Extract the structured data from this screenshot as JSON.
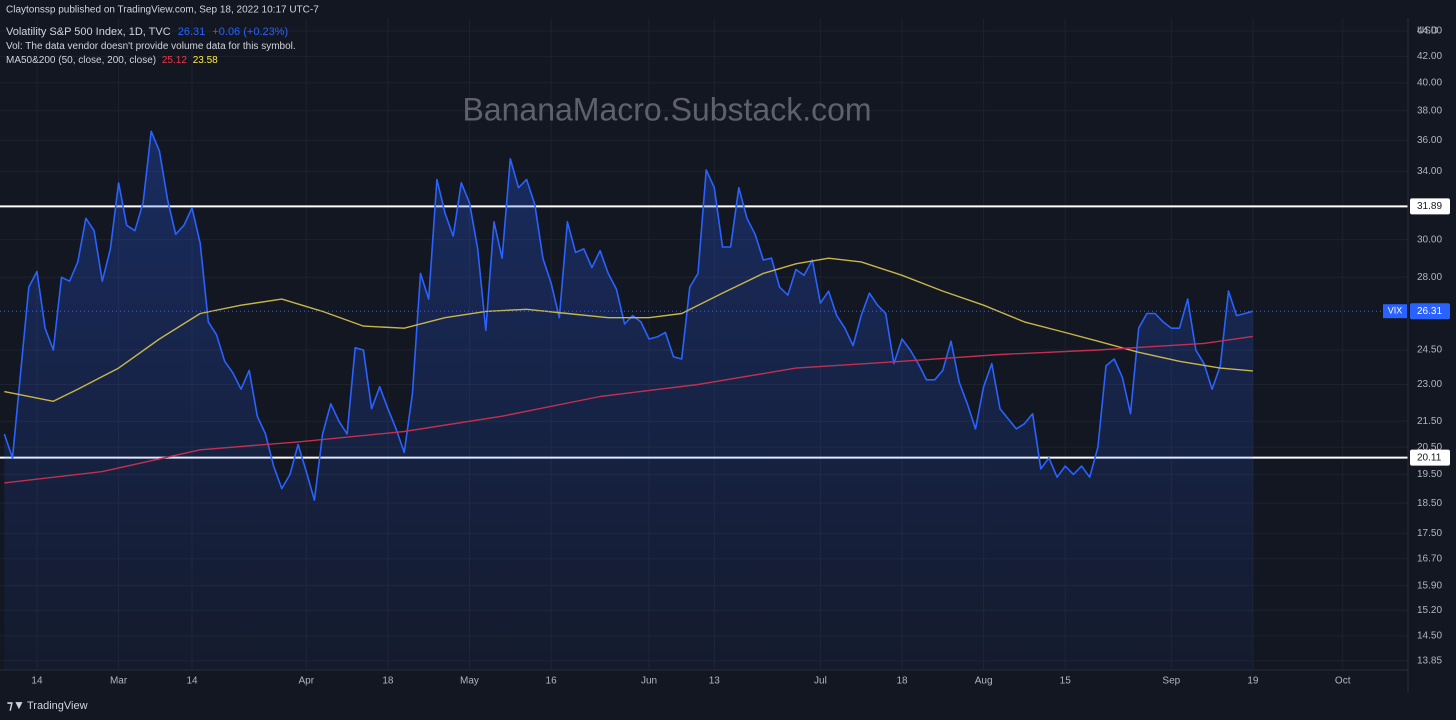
{
  "header": {
    "published": "Claytonssp published on TradingView.com, Sep 18, 2022 10:17 UTC-7",
    "symbol": "Volatility S&P 500 Index, 1D, TVC",
    "change": "+0.06 (+0.23%)",
    "volume_note": "Vol: The data vendor doesn't provide volume data for this symbol.",
    "indicator": "MA50&200 (50, close, 200, close)",
    "watermark": "BananaMacro.Substack.com",
    "currency": "USD",
    "brand": "TradingView"
  },
  "chart_data": {
    "type": "line",
    "log_scale": true,
    "grid": true,
    "xlim": [
      -3.55,
      168
    ],
    "xticks": [
      {
        "value": 0,
        "label": "14"
      },
      {
        "value": 10,
        "label": "Mar"
      },
      {
        "value": 19,
        "label": "14"
      },
      {
        "value": 33,
        "label": "Apr"
      },
      {
        "value": 43,
        "label": "18"
      },
      {
        "value": 53,
        "label": "May"
      },
      {
        "value": 63,
        "label": "16"
      },
      {
        "value": 75,
        "label": "Jun"
      },
      {
        "value": 83,
        "label": "13"
      },
      {
        "value": 96,
        "label": "Jul"
      },
      {
        "value": 106,
        "label": "18"
      },
      {
        "value": 116,
        "label": "Aug"
      },
      {
        "value": 126,
        "label": "15"
      },
      {
        "value": 139,
        "label": "Sep"
      },
      {
        "value": 149,
        "label": "19"
      },
      {
        "value": 160,
        "label": "Oct"
      }
    ],
    "ylim": [
      13.62,
      45.06
    ],
    "yticks": [
      {
        "value": 44,
        "label": "44.00"
      },
      {
        "value": 42,
        "label": "42.00"
      },
      {
        "value": 40,
        "label": "40.00"
      },
      {
        "value": 38,
        "label": "38.00"
      },
      {
        "value": 36,
        "label": "36.00"
      },
      {
        "value": 34,
        "label": "34.00"
      },
      {
        "value": 30,
        "label": "30.00"
      },
      {
        "value": 28,
        "label": "28.00"
      },
      {
        "value": 24.5,
        "label": "24.50"
      },
      {
        "value": 23,
        "label": "23.00"
      },
      {
        "value": 21.5,
        "label": "21.50"
      },
      {
        "value": 20.5,
        "label": "20.50"
      },
      {
        "value": 19.5,
        "label": "19.50"
      },
      {
        "value": 18.5,
        "label": "18.50"
      },
      {
        "value": 17.5,
        "label": "17.50"
      },
      {
        "value": 16.7,
        "label": "16.70"
      },
      {
        "value": 15.9,
        "label": "15.90"
      },
      {
        "value": 15.2,
        "label": "15.20"
      },
      {
        "value": 14.5,
        "label": "14.50"
      },
      {
        "value": 13.85,
        "label": "13.85"
      }
    ],
    "hlines": [
      {
        "value": 31.89,
        "color": "#ffffff"
      },
      {
        "value": 20.11,
        "color": "#ffffff"
      }
    ],
    "series": [
      {
        "name": "VIX",
        "color": "#2962ff",
        "area": true,
        "x": [
          -4,
          -3,
          -2,
          -1,
          0,
          1,
          2,
          3,
          4,
          5,
          6,
          7,
          8,
          9,
          10,
          11,
          12,
          13,
          14,
          15,
          16,
          17,
          18,
          19,
          20,
          21,
          22,
          23,
          24,
          25,
          26,
          27,
          28,
          29,
          30,
          31,
          32,
          33,
          34,
          35,
          36,
          37,
          38,
          39,
          40,
          41,
          42,
          43,
          44,
          45,
          46,
          47,
          48,
          49,
          50,
          51,
          52,
          53,
          54,
          55,
          56,
          57,
          58,
          59,
          60,
          61,
          62,
          63,
          64,
          65,
          66,
          67,
          68,
          69,
          70,
          71,
          72,
          73,
          74,
          75,
          76,
          77,
          78,
          79,
          80,
          81,
          82,
          83,
          84,
          85,
          86,
          87,
          88,
          89,
          90,
          91,
          92,
          93,
          94,
          95,
          96,
          97,
          98,
          99,
          100,
          101,
          102,
          103,
          104,
          105,
          106,
          107,
          108,
          109,
          110,
          111,
          112,
          113,
          114,
          115,
          116,
          117,
          118,
          119,
          120,
          121,
          122,
          123,
          124,
          125,
          126,
          127,
          128,
          129,
          130,
          131,
          132,
          133,
          134,
          135,
          136,
          137,
          138,
          139,
          140,
          141,
          142,
          143,
          144,
          145,
          146,
          147,
          148,
          149
        ],
        "values": [
          21,
          20.1,
          23.5,
          27.5,
          28.3,
          25.5,
          24.5,
          28,
          27.8,
          28.8,
          31.2,
          30.5,
          27.8,
          29.5,
          33.3,
          30.8,
          30.5,
          32.1,
          36.6,
          35.3,
          32.3,
          30.3,
          30.8,
          31.8,
          29.8,
          25.8,
          25.2,
          24,
          23.5,
          22.8,
          23.6,
          21.7,
          21,
          19.8,
          19,
          19.5,
          20.6,
          19.6,
          18.6,
          21,
          22.2,
          21.5,
          21,
          24.6,
          24.5,
          22,
          22.9,
          22,
          21.2,
          20.3,
          22.6,
          28.2,
          26.9,
          33.5,
          31.5,
          30.2,
          33.3,
          32.1,
          29.5,
          25.4,
          31,
          29,
          34.8,
          33,
          33.5,
          32,
          29,
          27.7,
          26,
          31,
          29.3,
          29.5,
          28.5,
          29.4,
          28.2,
          27.4,
          25.7,
          26.1,
          25.8,
          25,
          25.1,
          25.3,
          24.2,
          24.1,
          27.5,
          28.2,
          34.1,
          33,
          29.6,
          29.6,
          33,
          31.2,
          30.3,
          28.9,
          29,
          27.5,
          27.1,
          28.4,
          28.1,
          28.9,
          26.7,
          27.3,
          26.1,
          25.5,
          24.7,
          26.1,
          27.2,
          26.6,
          26.2,
          23.9,
          25,
          24.5,
          23.9,
          23.2,
          23.2,
          23.6,
          24.9,
          23.1,
          22.2,
          21.2,
          22.9,
          23.9,
          22,
          21.6,
          21.2,
          21.4,
          21.8,
          19.7,
          20.1,
          19.4,
          19.8,
          19.5,
          19.8,
          19.4,
          20.5,
          23.8,
          24.1,
          23.3,
          21.8,
          25.5,
          26.2,
          26.2,
          25.8,
          25.5,
          25.5,
          26.9,
          24.5,
          23.9,
          22.8,
          23.8,
          27.3,
          26.1,
          26.2,
          26.31
        ]
      },
      {
        "color": "#c8b54a",
        "x": [
          -4,
          2,
          5,
          10,
          15,
          20,
          25,
          30,
          35,
          40,
          45,
          50,
          55,
          60,
          65,
          70,
          75,
          79,
          84,
          89,
          93,
          97,
          101,
          106,
          111,
          116,
          121,
          126,
          130,
          135,
          140,
          145,
          149
        ],
        "values": [
          22.7,
          22.3,
          22.8,
          23.7,
          25,
          26.2,
          26.6,
          26.9,
          26.3,
          25.6,
          25.5,
          26,
          26.3,
          26.4,
          26.2,
          26,
          26,
          26.2,
          27.2,
          28.2,
          28.7,
          29,
          28.8,
          28.1,
          27.3,
          26.6,
          25.8,
          25.3,
          24.9,
          24.4,
          24,
          23.7,
          23.58
        ]
      },
      {
        "color": "#c2304f",
        "x": [
          -4,
          8,
          20,
          32,
          45,
          57,
          69,
          81,
          93,
          106,
          118,
          130,
          143,
          149
        ],
        "values": [
          19.2,
          19.6,
          20.4,
          20.7,
          21.1,
          21.7,
          22.5,
          23,
          23.7,
          24,
          24.3,
          24.5,
          24.8,
          25.12
        ]
      }
    ]
  }
}
